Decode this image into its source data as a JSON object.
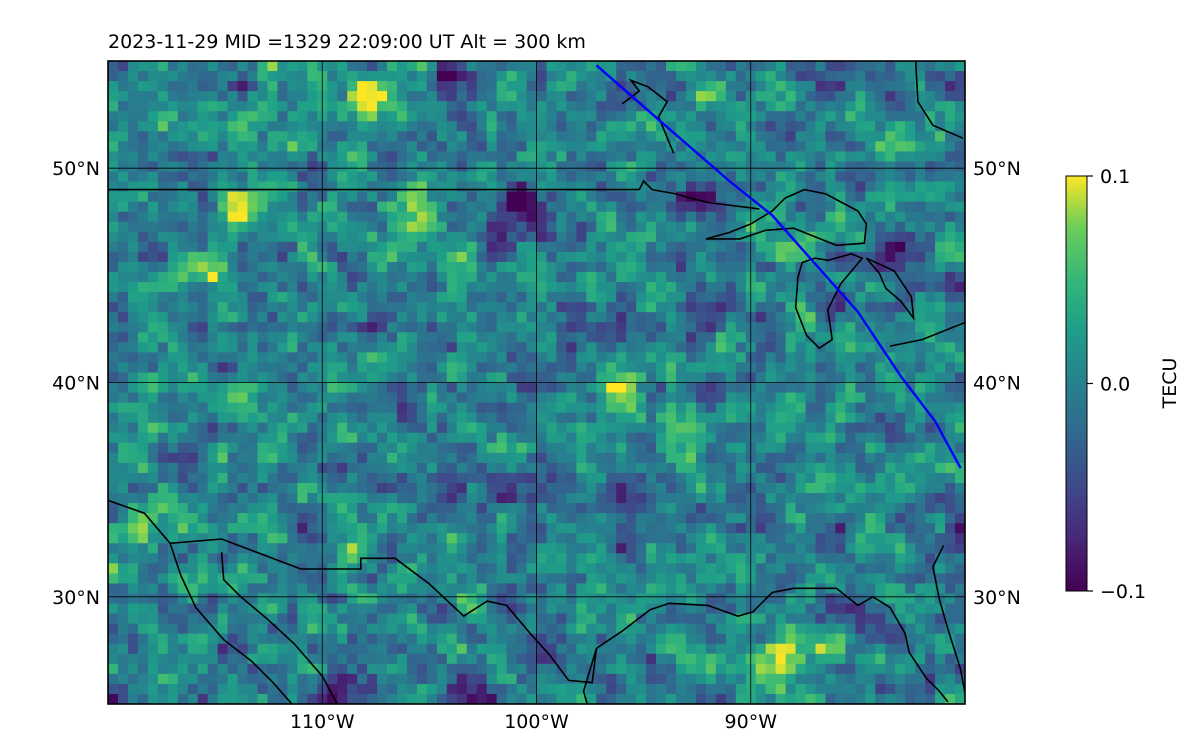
{
  "title": "2023-11-29  MID =1329    22:09:00  UT  Alt = 300 km",
  "map": {
    "lon_range": [
      -120,
      -80
    ],
    "lat_range": [
      25,
      55
    ],
    "lon_ticks": [
      {
        "value": -110,
        "label": "110°W"
      },
      {
        "value": -100,
        "label": "100°W"
      },
      {
        "value": -90,
        "label": "90°W"
      }
    ],
    "lat_ticks": [
      {
        "value": 30,
        "label": "30°N"
      },
      {
        "value": 40,
        "label": "40°N"
      },
      {
        "value": 50,
        "label": "50°N"
      }
    ],
    "colormap": "viridis",
    "track_color": "#0000ff",
    "coastline_color": "#000000"
  },
  "colorbar": {
    "label": "TECU",
    "min": -0.1,
    "max": 0.1,
    "ticks": [
      {
        "value": 0.1,
        "label": "0.1"
      },
      {
        "value": 0.0,
        "label": "0.0"
      },
      {
        "value": -0.1,
        "label": "−0.1"
      }
    ]
  },
  "chart_data": {
    "type": "heatmap",
    "title": "2023-11-29  MID =1329    22:09:00  UT  Alt = 300 km",
    "xlabel": "",
    "ylabel": "",
    "xlim": [
      -120,
      -80
    ],
    "ylim": [
      25,
      55
    ],
    "zlim": [
      -0.1,
      0.1
    ],
    "z_label": "TECU",
    "hotspots": [
      {
        "lon": -107.5,
        "lat": 53.4,
        "value": 0.1
      },
      {
        "lon": -96.2,
        "lat": 39.6,
        "value": 0.1
      },
      {
        "lon": -113.8,
        "lat": 48.3,
        "value": 0.09
      },
      {
        "lon": -105.4,
        "lat": 47.8,
        "value": 0.08
      },
      {
        "lon": -88.9,
        "lat": 26.8,
        "value": 0.09
      },
      {
        "lon": -118.2,
        "lat": 33.2,
        "value": 0.07
      },
      {
        "lon": -116.2,
        "lat": 45.2,
        "value": 0.07
      },
      {
        "lon": -86.5,
        "lat": 27.8,
        "value": 0.06
      }
    ],
    "coldspots": [
      {
        "lon": -103.8,
        "lat": 54.2,
        "value": -0.1
      },
      {
        "lon": -100.8,
        "lat": 48.9,
        "value": -0.09
      },
      {
        "lon": -101.2,
        "lat": 47.0,
        "value": -0.09
      },
      {
        "lon": -108.9,
        "lat": 25.6,
        "value": -0.1
      },
      {
        "lon": -91.5,
        "lat": 43.2,
        "value": -0.08
      },
      {
        "lon": -83.0,
        "lat": 46.0,
        "value": -0.08
      },
      {
        "lon": -92.8,
        "lat": 48.4,
        "value": -0.08
      },
      {
        "lon": -84.2,
        "lat": 28.3,
        "value": -0.08
      }
    ],
    "waves": [
      {
        "lon": -89.0,
        "lat": 45.5,
        "sign": 1
      },
      {
        "lon": -87.5,
        "lat": 44.0,
        "sign": -1
      },
      {
        "lon": -91.0,
        "lat": 44.5,
        "sign": -1
      },
      {
        "lon": -93.0,
        "lat": 45.5,
        "sign": 1
      }
    ],
    "track": {
      "color": "#0000ff",
      "lon": [
        -97.2,
        -94.0,
        -91.0,
        -89.0,
        -86.7,
        -85.0,
        -83.0,
        -81.4,
        -80.2
      ],
      "lat": [
        54.8,
        52.0,
        49.4,
        47.8,
        45.2,
        43.3,
        40.3,
        38.2,
        36.0
      ]
    },
    "lines": [
      {
        "name": "canada-us-border-west",
        "lon": [
          -120,
          -95.2
        ],
        "lat": [
          49.0,
          49.0
        ]
      },
      {
        "name": "border-great-lakes",
        "lon": [
          -95.2,
          -95.0,
          -94.6,
          -93.5,
          -92.8,
          -92.0,
          -89.6
        ],
        "lat": [
          49.0,
          49.4,
          49.0,
          48.8,
          48.6,
          48.4,
          48.1
        ]
      },
      {
        "name": "lake-superior",
        "lon": [
          -92.1,
          -91.0,
          -90.0,
          -89.0,
          -88.4,
          -87.5,
          -86.5,
          -85.0,
          -84.6,
          -84.7,
          -86.0,
          -87.0,
          -88.0,
          -89.3,
          -90.5,
          -92.1
        ],
        "lat": [
          46.7,
          47.0,
          47.4,
          48.0,
          48.6,
          49.0,
          48.8,
          48.0,
          47.4,
          46.5,
          46.4,
          46.8,
          47.2,
          47.1,
          46.7,
          46.7
        ]
      },
      {
        "name": "lake-michigan",
        "lon": [
          -87.8,
          -87.9,
          -87.4,
          -86.8,
          -86.2,
          -86.4,
          -85.8,
          -84.8,
          -85.3,
          -86.4,
          -87.0,
          -87.6,
          -87.8
        ],
        "lat": [
          44.9,
          43.5,
          42.2,
          41.6,
          42.0,
          43.4,
          44.6,
          45.8,
          46.0,
          45.7,
          45.8,
          45.6,
          44.9
        ]
      },
      {
        "name": "lake-huron",
        "lon": [
          -84.6,
          -83.3,
          -82.5,
          -82.4,
          -83.0,
          -83.7,
          -84.0,
          -84.6
        ],
        "lat": [
          45.8,
          45.2,
          44.0,
          43.0,
          43.8,
          44.4,
          45.1,
          45.8
        ]
      },
      {
        "name": "lake-erie-outline",
        "lon": [
          -83.5,
          -82.0,
          -80.0
        ],
        "lat": [
          41.7,
          42.0,
          42.8
        ]
      },
      {
        "name": "northern-coast",
        "lon": [
          -96.0,
          -95.2,
          -95.6,
          -94.8,
          -93.9,
          -94.3,
          -93.6
        ],
        "lat": [
          53.0,
          53.6,
          54.1,
          53.8,
          53.1,
          52.4,
          50.7
        ]
      },
      {
        "name": "east-coast-north",
        "lon": [
          -82.3,
          -82.2,
          -81.5,
          -80.1
        ],
        "lat": [
          55.0,
          53.1,
          52.0,
          51.4
        ]
      },
      {
        "name": "texas-gulf-mexico",
        "lon": [
          -106.6,
          -105.0,
          -103.4,
          -102.3,
          -101.4,
          -100.3,
          -99.4,
          -98.5,
          -97.4,
          -97.2,
          -97.8,
          -97.5,
          -97.2
        ],
        "lat": [
          31.8,
          30.6,
          29.1,
          29.8,
          29.6,
          28.3,
          27.3,
          26.1,
          26.0,
          27.6,
          25.6,
          24.5,
          22.0
        ]
      },
      {
        "name": "mexico-border-west",
        "lon": [
          -120,
          -118.3,
          -117.1,
          -114.7,
          -111.0,
          -108.2,
          -108.2,
          -106.6
        ],
        "lat": [
          34.5,
          33.9,
          32.5,
          32.7,
          31.3,
          31.3,
          31.8,
          31.8
        ]
      },
      {
        "name": "baja-california",
        "lon": [
          -117.1,
          -116.6,
          -115.9,
          -114.6,
          -113.3,
          -112.3,
          -110.8,
          -109.9
        ],
        "lat": [
          32.5,
          31.0,
          29.5,
          28.0,
          27.0,
          26.0,
          24.3,
          23.0
        ]
      },
      {
        "name": "gulf-of-california",
        "lon": [
          -114.7,
          -114.6,
          -113.8,
          -112.6,
          -111.3,
          -110.0,
          -109.3
        ],
        "lat": [
          32.1,
          30.8,
          30.0,
          29.0,
          27.8,
          26.3,
          25.0
        ]
      },
      {
        "name": "gulf-coast-us",
        "lon": [
          -97.2,
          -96.0,
          -94.7,
          -93.8,
          -92.0,
          -90.6,
          -89.9,
          -89.0,
          -88.0,
          -87.2,
          -86.0,
          -85.0,
          -84.3,
          -83.5,
          -82.8,
          -82.6,
          -81.8,
          -81.2,
          -80.8
        ],
        "lat": [
          27.6,
          28.4,
          29.4,
          29.7,
          29.6,
          29.1,
          29.3,
          30.2,
          30.4,
          30.4,
          30.4,
          29.6,
          30.0,
          29.5,
          28.3,
          27.4,
          26.2,
          25.6,
          25.1
        ]
      },
      {
        "name": "florida-east-coast",
        "lon": [
          -80.0,
          -80.2,
          -80.8,
          -81.2,
          -81.5,
          -81.0
        ],
        "lat": [
          25.5,
          26.6,
          28.5,
          29.9,
          31.4,
          32.4
        ]
      }
    ]
  }
}
